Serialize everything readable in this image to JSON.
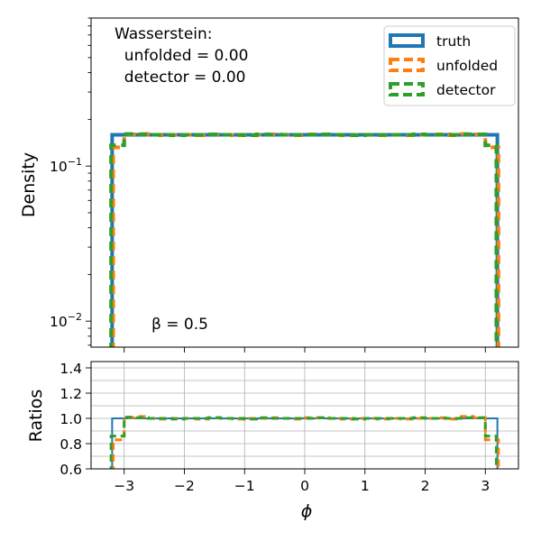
{
  "chart_data": [
    {
      "type": "line",
      "panel": "main",
      "ylabel": "Density",
      "yscale": "log",
      "xlim": [
        -3.55,
        3.55
      ],
      "ylim": [
        0.0068,
        0.9
      ],
      "ytick_labels": [
        "10^{-2}",
        "10^{-1}"
      ],
      "annotation_lines": [
        "Wasserstein:",
        "  unfolded = 0.00",
        "  detector = 0.00"
      ],
      "beta_label": "β = 0.5",
      "legend_placement": "upper right",
      "bin_edges": [
        -3.2,
        3.2
      ],
      "series": [
        {
          "name": "truth",
          "color": "#1f77b4",
          "style": "solid",
          "values": [
            0.159,
            0.159,
            0.159,
            0.159,
            0.159,
            0.159,
            0.159,
            0.159,
            0.159,
            0.159,
            0.159,
            0.159,
            0.159,
            0.159,
            0.159,
            0.159,
            0.159,
            0.159,
            0.159,
            0.159,
            0.159,
            0.159,
            0.159,
            0.159,
            0.159,
            0.159,
            0.159,
            0.159,
            0.159,
            0.159,
            0.159,
            0.159
          ]
        },
        {
          "name": "unfolded",
          "color": "#ff7f0e",
          "style": "dashed",
          "values": [
            0.132,
            0.16,
            0.161,
            0.159,
            0.158,
            0.159,
            0.159,
            0.158,
            0.16,
            0.159,
            0.158,
            0.159,
            0.159,
            0.16,
            0.159,
            0.158,
            0.16,
            0.16,
            0.159,
            0.158,
            0.159,
            0.159,
            0.158,
            0.159,
            0.158,
            0.159,
            0.159,
            0.16,
            0.158,
            0.161,
            0.16,
            0.132
          ]
        },
        {
          "name": "detector",
          "color": "#2ca02c",
          "style": "dashed",
          "values": [
            0.136,
            0.161,
            0.16,
            0.159,
            0.159,
            0.158,
            0.159,
            0.159,
            0.16,
            0.159,
            0.159,
            0.158,
            0.16,
            0.159,
            0.159,
            0.159,
            0.159,
            0.16,
            0.159,
            0.159,
            0.158,
            0.159,
            0.159,
            0.159,
            0.159,
            0.16,
            0.159,
            0.159,
            0.159,
            0.16,
            0.16,
            0.136
          ]
        }
      ]
    },
    {
      "type": "line",
      "panel": "ratio",
      "xlabel": "ϕ",
      "ylabel": "Ratios",
      "xlim": [
        -3.55,
        3.55
      ],
      "ylim": [
        0.6,
        1.45
      ],
      "xticks": [
        -3,
        -2,
        -1,
        0,
        1,
        2,
        3
      ],
      "xtick_labels": [
        "−3",
        "−2",
        "−1",
        "0",
        "1",
        "2",
        "3"
      ],
      "yticks": [
        0.6,
        0.8,
        1.0,
        1.2,
        1.4
      ],
      "ytick_labels": [
        "0.6",
        "0.8",
        "1.0",
        "1.2",
        "1.4"
      ],
      "grid": true,
      "series": [
        {
          "name": "truth",
          "color": "#1f77b4",
          "style": "solid",
          "values": [
            1.0,
            1.0,
            1.0,
            1.0,
            1.0,
            1.0,
            1.0,
            1.0,
            1.0,
            1.0,
            1.0,
            1.0,
            1.0,
            1.0,
            1.0,
            1.0,
            1.0,
            1.0,
            1.0,
            1.0,
            1.0,
            1.0,
            1.0,
            1.0,
            1.0,
            1.0,
            1.0,
            1.0,
            1.0,
            1.0,
            1.0,
            1.0
          ]
        },
        {
          "name": "unfolded",
          "color": "#ff7f0e",
          "style": "dashed",
          "values": [
            0.83,
            1.005,
            1.015,
            1.0,
            0.995,
            1.0,
            1.0,
            0.995,
            1.005,
            1.0,
            0.995,
            1.0,
            1.0,
            1.005,
            1.0,
            0.995,
            1.005,
            1.005,
            1.0,
            0.995,
            1.0,
            1.0,
            0.995,
            1.0,
            0.995,
            1.0,
            1.0,
            1.005,
            0.995,
            1.015,
            1.005,
            0.83
          ]
        },
        {
          "name": "detector",
          "color": "#2ca02c",
          "style": "dashed",
          "values": [
            0.86,
            1.01,
            1.005,
            1.0,
            1.0,
            0.995,
            1.0,
            1.0,
            1.005,
            1.0,
            1.0,
            0.995,
            1.005,
            1.0,
            1.0,
            1.0,
            1.0,
            1.005,
            1.0,
            1.0,
            0.995,
            1.0,
            1.0,
            1.0,
            1.0,
            1.005,
            1.0,
            1.0,
            1.0,
            1.005,
            1.005,
            0.86
          ]
        }
      ]
    }
  ]
}
